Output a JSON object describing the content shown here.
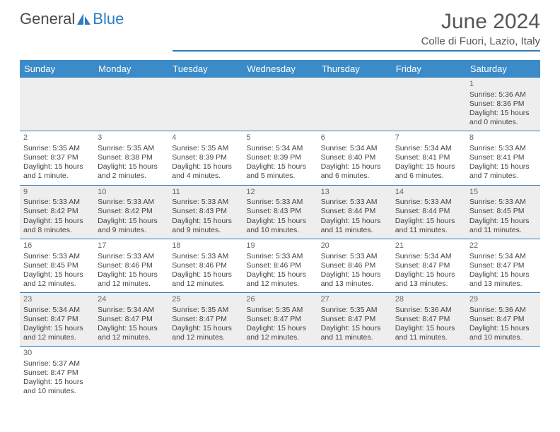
{
  "logo": {
    "text_left": "General",
    "text_right": "Blue"
  },
  "title": "June 2024",
  "location": "Colle di Fuori, Lazio, Italy",
  "colors": {
    "header_bg": "#3b8bc9",
    "accent": "#2d7dc0",
    "row_even": "#eeeeee",
    "row_odd": "#ffffff",
    "text": "#444444"
  },
  "day_headers": [
    "Sunday",
    "Monday",
    "Tuesday",
    "Wednesday",
    "Thursday",
    "Friday",
    "Saturday"
  ],
  "weeks": [
    [
      null,
      null,
      null,
      null,
      null,
      null,
      {
        "n": "1",
        "sr": "Sunrise: 5:36 AM",
        "ss": "Sunset: 8:36 PM",
        "dl1": "Daylight: 15 hours",
        "dl2": "and 0 minutes."
      }
    ],
    [
      {
        "n": "2",
        "sr": "Sunrise: 5:35 AM",
        "ss": "Sunset: 8:37 PM",
        "dl1": "Daylight: 15 hours",
        "dl2": "and 1 minute."
      },
      {
        "n": "3",
        "sr": "Sunrise: 5:35 AM",
        "ss": "Sunset: 8:38 PM",
        "dl1": "Daylight: 15 hours",
        "dl2": "and 2 minutes."
      },
      {
        "n": "4",
        "sr": "Sunrise: 5:35 AM",
        "ss": "Sunset: 8:39 PM",
        "dl1": "Daylight: 15 hours",
        "dl2": "and 4 minutes."
      },
      {
        "n": "5",
        "sr": "Sunrise: 5:34 AM",
        "ss": "Sunset: 8:39 PM",
        "dl1": "Daylight: 15 hours",
        "dl2": "and 5 minutes."
      },
      {
        "n": "6",
        "sr": "Sunrise: 5:34 AM",
        "ss": "Sunset: 8:40 PM",
        "dl1": "Daylight: 15 hours",
        "dl2": "and 6 minutes."
      },
      {
        "n": "7",
        "sr": "Sunrise: 5:34 AM",
        "ss": "Sunset: 8:41 PM",
        "dl1": "Daylight: 15 hours",
        "dl2": "and 6 minutes."
      },
      {
        "n": "8",
        "sr": "Sunrise: 5:33 AM",
        "ss": "Sunset: 8:41 PM",
        "dl1": "Daylight: 15 hours",
        "dl2": "and 7 minutes."
      }
    ],
    [
      {
        "n": "9",
        "sr": "Sunrise: 5:33 AM",
        "ss": "Sunset: 8:42 PM",
        "dl1": "Daylight: 15 hours",
        "dl2": "and 8 minutes."
      },
      {
        "n": "10",
        "sr": "Sunrise: 5:33 AM",
        "ss": "Sunset: 8:42 PM",
        "dl1": "Daylight: 15 hours",
        "dl2": "and 9 minutes."
      },
      {
        "n": "11",
        "sr": "Sunrise: 5:33 AM",
        "ss": "Sunset: 8:43 PM",
        "dl1": "Daylight: 15 hours",
        "dl2": "and 9 minutes."
      },
      {
        "n": "12",
        "sr": "Sunrise: 5:33 AM",
        "ss": "Sunset: 8:43 PM",
        "dl1": "Daylight: 15 hours",
        "dl2": "and 10 minutes."
      },
      {
        "n": "13",
        "sr": "Sunrise: 5:33 AM",
        "ss": "Sunset: 8:44 PM",
        "dl1": "Daylight: 15 hours",
        "dl2": "and 11 minutes."
      },
      {
        "n": "14",
        "sr": "Sunrise: 5:33 AM",
        "ss": "Sunset: 8:44 PM",
        "dl1": "Daylight: 15 hours",
        "dl2": "and 11 minutes."
      },
      {
        "n": "15",
        "sr": "Sunrise: 5:33 AM",
        "ss": "Sunset: 8:45 PM",
        "dl1": "Daylight: 15 hours",
        "dl2": "and 11 minutes."
      }
    ],
    [
      {
        "n": "16",
        "sr": "Sunrise: 5:33 AM",
        "ss": "Sunset: 8:45 PM",
        "dl1": "Daylight: 15 hours",
        "dl2": "and 12 minutes."
      },
      {
        "n": "17",
        "sr": "Sunrise: 5:33 AM",
        "ss": "Sunset: 8:46 PM",
        "dl1": "Daylight: 15 hours",
        "dl2": "and 12 minutes."
      },
      {
        "n": "18",
        "sr": "Sunrise: 5:33 AM",
        "ss": "Sunset: 8:46 PM",
        "dl1": "Daylight: 15 hours",
        "dl2": "and 12 minutes."
      },
      {
        "n": "19",
        "sr": "Sunrise: 5:33 AM",
        "ss": "Sunset: 8:46 PM",
        "dl1": "Daylight: 15 hours",
        "dl2": "and 12 minutes."
      },
      {
        "n": "20",
        "sr": "Sunrise: 5:33 AM",
        "ss": "Sunset: 8:46 PM",
        "dl1": "Daylight: 15 hours",
        "dl2": "and 13 minutes."
      },
      {
        "n": "21",
        "sr": "Sunrise: 5:34 AM",
        "ss": "Sunset: 8:47 PM",
        "dl1": "Daylight: 15 hours",
        "dl2": "and 13 minutes."
      },
      {
        "n": "22",
        "sr": "Sunrise: 5:34 AM",
        "ss": "Sunset: 8:47 PM",
        "dl1": "Daylight: 15 hours",
        "dl2": "and 13 minutes."
      }
    ],
    [
      {
        "n": "23",
        "sr": "Sunrise: 5:34 AM",
        "ss": "Sunset: 8:47 PM",
        "dl1": "Daylight: 15 hours",
        "dl2": "and 12 minutes."
      },
      {
        "n": "24",
        "sr": "Sunrise: 5:34 AM",
        "ss": "Sunset: 8:47 PM",
        "dl1": "Daylight: 15 hours",
        "dl2": "and 12 minutes."
      },
      {
        "n": "25",
        "sr": "Sunrise: 5:35 AM",
        "ss": "Sunset: 8:47 PM",
        "dl1": "Daylight: 15 hours",
        "dl2": "and 12 minutes."
      },
      {
        "n": "26",
        "sr": "Sunrise: 5:35 AM",
        "ss": "Sunset: 8:47 PM",
        "dl1": "Daylight: 15 hours",
        "dl2": "and 12 minutes."
      },
      {
        "n": "27",
        "sr": "Sunrise: 5:35 AM",
        "ss": "Sunset: 8:47 PM",
        "dl1": "Daylight: 15 hours",
        "dl2": "and 11 minutes."
      },
      {
        "n": "28",
        "sr": "Sunrise: 5:36 AM",
        "ss": "Sunset: 8:47 PM",
        "dl1": "Daylight: 15 hours",
        "dl2": "and 11 minutes."
      },
      {
        "n": "29",
        "sr": "Sunrise: 5:36 AM",
        "ss": "Sunset: 8:47 PM",
        "dl1": "Daylight: 15 hours",
        "dl2": "and 10 minutes."
      }
    ],
    [
      {
        "n": "30",
        "sr": "Sunrise: 5:37 AM",
        "ss": "Sunset: 8:47 PM",
        "dl1": "Daylight: 15 hours",
        "dl2": "and 10 minutes."
      },
      null,
      null,
      null,
      null,
      null,
      null
    ]
  ]
}
